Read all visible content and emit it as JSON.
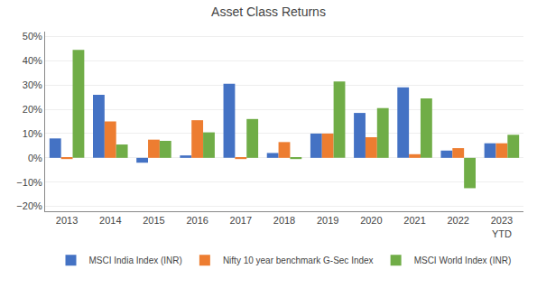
{
  "chart_data": {
    "type": "bar",
    "title": "Asset Class Returns",
    "categories": [
      "2013",
      "2014",
      "2015",
      "2016",
      "2017",
      "2018",
      "2019",
      "2020",
      "2021",
      "2022",
      "2023\nYTD"
    ],
    "series": [
      {
        "name": "MSCI India Index (INR)",
        "color": "#4472C4",
        "values": [
          0.08,
          0.26,
          -0.02,
          0.01,
          0.305,
          0.02,
          0.1,
          0.185,
          0.29,
          0.03,
          0.06
        ]
      },
      {
        "name": "Nifty 10 year benchmark G-Sec Index",
        "color": "#ED7D31",
        "values": [
          -0.005,
          0.15,
          0.075,
          0.155,
          -0.005,
          0.065,
          0.1,
          0.085,
          0.015,
          0.04,
          0.06
        ]
      },
      {
        "name": "MSCI World Index (INR)",
        "color": "#70AD47",
        "values": [
          0.445,
          0.055,
          0.07,
          0.105,
          0.16,
          -0.005,
          0.315,
          0.205,
          0.245,
          -0.125,
          0.095
        ]
      }
    ],
    "ylim": [
      -0.22,
      0.52
    ],
    "yticks": [
      {
        "value": -0.2,
        "label": "−20%"
      },
      {
        "value": -0.1,
        "label": "−10%"
      },
      {
        "value": 0.0,
        "label": "0%"
      },
      {
        "value": 0.1,
        "label": "10%"
      },
      {
        "value": 0.2,
        "label": "20%"
      },
      {
        "value": 0.3,
        "label": "30%"
      },
      {
        "value": 0.4,
        "label": "40%"
      },
      {
        "value": 0.5,
        "label": "50%"
      }
    ],
    "grid": true,
    "legend": "bottom"
  }
}
